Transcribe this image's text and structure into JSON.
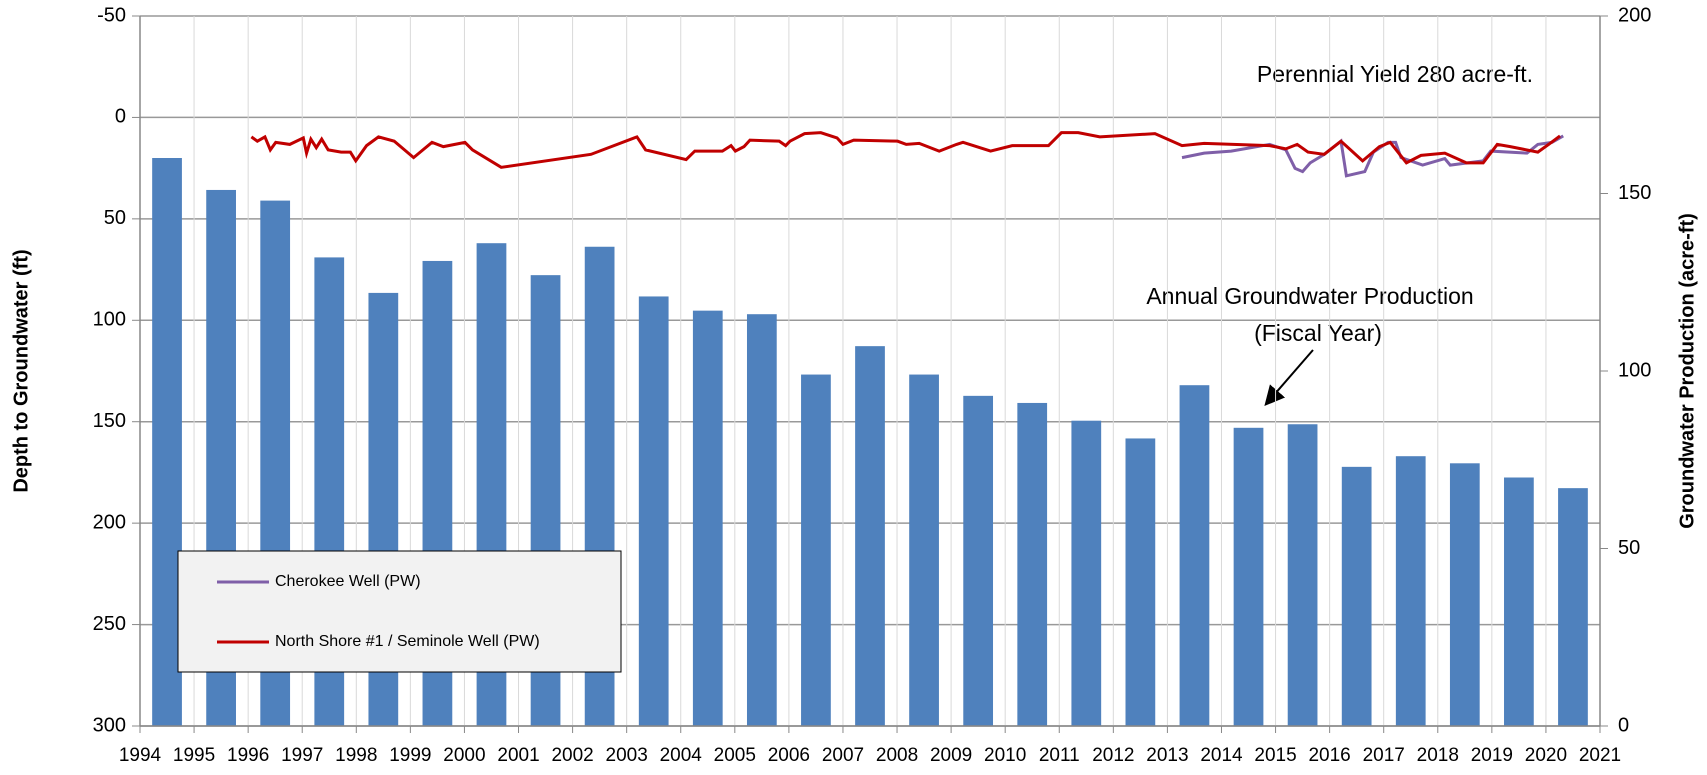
{
  "chart_data": {
    "type": "bar-line",
    "ylabel": "Depth to Groundwater (ft)",
    "y2label": "Groundwater Production (acre-ft)",
    "ylim": [
      300,
      -50
    ],
    "yticks": [
      -50,
      0,
      50,
      100,
      150,
      200,
      250,
      300
    ],
    "y2lim": [
      0,
      200
    ],
    "y2ticks": [
      0,
      50,
      100,
      150,
      200
    ],
    "xlim": [
      1994,
      2021
    ],
    "xticks": [
      1994,
      1995,
      1996,
      1997,
      1998,
      1999,
      2000,
      2001,
      2002,
      2003,
      2004,
      2005,
      2006,
      2007,
      2008,
      2009,
      2010,
      2011,
      2012,
      2013,
      2014,
      2015,
      2016,
      2017,
      2018,
      2019,
      2020,
      2021
    ],
    "grid": true,
    "legend": "lower left",
    "annotations": [
      "Perennial Yield 280 acre-ft.",
      "Annual Groundwater Production",
      "(Fiscal Year)"
    ],
    "bars": {
      "axis": "y2",
      "color": "#4f81bd",
      "x": [
        1994.5,
        1995.5,
        1996.5,
        1997.5,
        1998.5,
        1999.5,
        2000.5,
        2001.5,
        2002.5,
        2003.5,
        2004.5,
        2005.5,
        2006.5,
        2007.5,
        2008.5,
        2009.5,
        2010.5,
        2011.5,
        2012.5,
        2013.5,
        2014.5,
        2015.5,
        2016.5,
        2017.5,
        2018.5,
        2019.5,
        2020.5
      ],
      "values": [
        160,
        151,
        148,
        132,
        122,
        131,
        136,
        127,
        135,
        121,
        117,
        116,
        99,
        107,
        99,
        93,
        91,
        86,
        81,
        96,
        84,
        85,
        73,
        76,
        74,
        70,
        67
      ]
    },
    "series": [
      {
        "name": "Cherokee Well (PW)",
        "color": "#7f5fa8",
        "x": [
          2013.27,
          2013.68,
          2014.18,
          2014.89,
          2015.19,
          2015.36,
          2015.5,
          2015.64,
          2015.9,
          2016.21,
          2016.31,
          2016.65,
          2016.81,
          2017.08,
          2017.22,
          2017.32,
          2017.72,
          2018.13,
          2018.23,
          2018.84,
          2018.98,
          2019.65,
          2019.85,
          2020.11,
          2020.32
        ],
        "values": [
          19.8,
          17.6,
          16.6,
          13.3,
          16.0,
          25.1,
          26.7,
          22.4,
          18.2,
          11.7,
          28.8,
          26.7,
          17.1,
          12.3,
          12.3,
          19.8,
          23.5,
          20.3,
          23.5,
          21.4,
          16.6,
          17.6,
          13.3,
          12.3,
          9.1
        ]
      },
      {
        "name": "North Shore #1 / Seminole Well (PW)",
        "color": "#c00000",
        "x": [
          1996.06,
          1996.17,
          1996.31,
          1996.41,
          1996.51,
          1996.77,
          1997.02,
          1997.08,
          1997.16,
          1997.26,
          1997.36,
          1997.48,
          1997.72,
          1997.89,
          1997.99,
          1998.19,
          1998.41,
          1998.7,
          1999.06,
          1999.4,
          1999.61,
          2000.01,
          2000.15,
          2000.68,
          2002.34,
          2003.19,
          2003.35,
          2004.1,
          2004.26,
          2004.77,
          2004.93,
          2005.01,
          2005.17,
          2005.28,
          2005.82,
          2005.94,
          2006.02,
          2006.29,
          2006.59,
          2006.89,
          2007.0,
          2007.2,
          2008.01,
          2008.17,
          2008.41,
          2008.78,
          2009.1,
          2009.22,
          2009.73,
          2010.13,
          2010.8,
          2011.04,
          2011.35,
          2011.75,
          2012.77,
          2013.27,
          2013.68,
          2014.89,
          2015.19,
          2015.4,
          2015.6,
          2015.9,
          2016.21,
          2016.61,
          2016.92,
          2017.12,
          2017.42,
          2017.69,
          2018.13,
          2018.53,
          2018.84,
          2019.1,
          2019.34,
          2019.85,
          2020.05,
          2020.26
        ],
        "values": [
          9.6,
          11.7,
          9.6,
          16.0,
          12.3,
          13.3,
          10.1,
          17.6,
          10.7,
          14.9,
          10.7,
          16.0,
          17.1,
          17.1,
          21.4,
          13.9,
          9.6,
          11.7,
          19.8,
          12.3,
          14.4,
          12.3,
          16.0,
          24.6,
          18.2,
          9.6,
          16.0,
          20.8,
          16.6,
          16.6,
          13.9,
          16.6,
          14.4,
          11.2,
          11.7,
          13.9,
          11.7,
          8.0,
          7.5,
          10.1,
          13.3,
          11.2,
          11.7,
          13.3,
          12.8,
          16.6,
          13.3,
          12.3,
          16.6,
          13.9,
          13.9,
          7.5,
          7.5,
          9.6,
          8.0,
          13.9,
          12.8,
          13.9,
          15.5,
          13.3,
          17.1,
          18.2,
          11.7,
          21.4,
          14.4,
          12.3,
          22.4,
          18.7,
          17.6,
          22.4,
          22.4,
          13.3,
          14.4,
          17.1,
          13.3,
          9.1
        ]
      }
    ]
  }
}
